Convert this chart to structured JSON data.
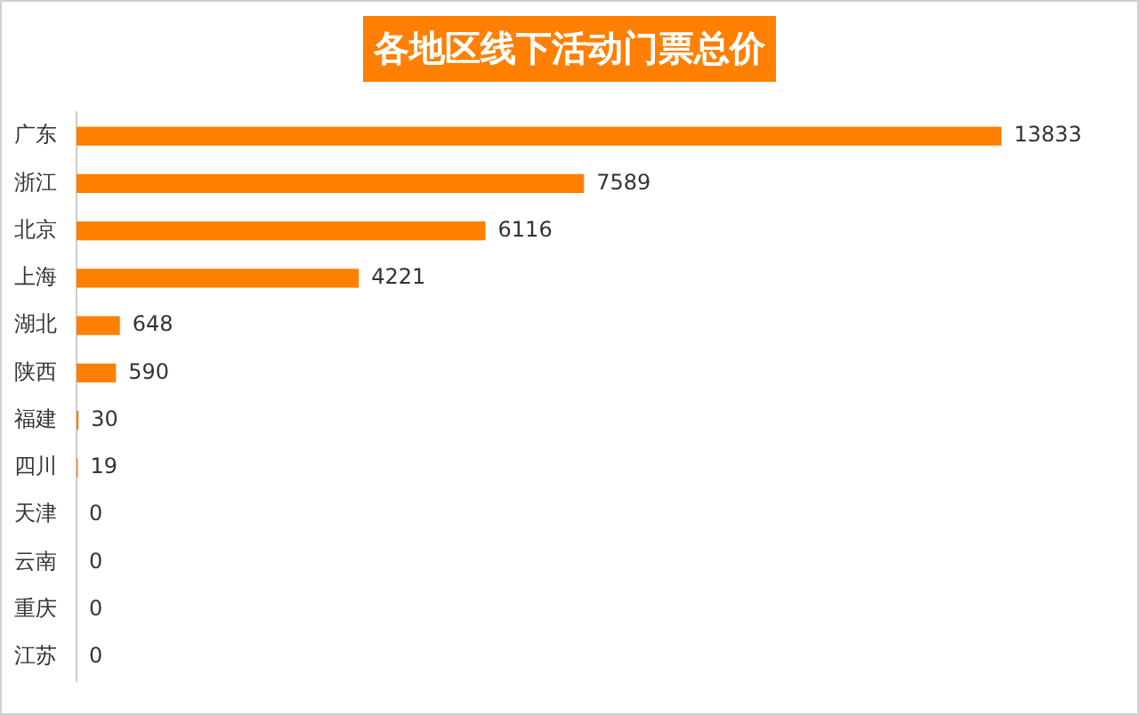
{
  "chart_data": {
    "type": "bar",
    "orientation": "horizontal",
    "title": "各地区线下活动门票总价",
    "categories": [
      "广东",
      "浙江",
      "北京",
      "上海",
      "湖北",
      "陕西",
      "福建",
      "四川",
      "天津",
      "云南",
      "重庆",
      "江苏"
    ],
    "values": [
      13833,
      7589,
      6116,
      4221,
      648,
      590,
      30,
      19,
      0,
      0,
      0,
      0
    ],
    "color": "#ff7f00",
    "data_labels": true
  }
}
